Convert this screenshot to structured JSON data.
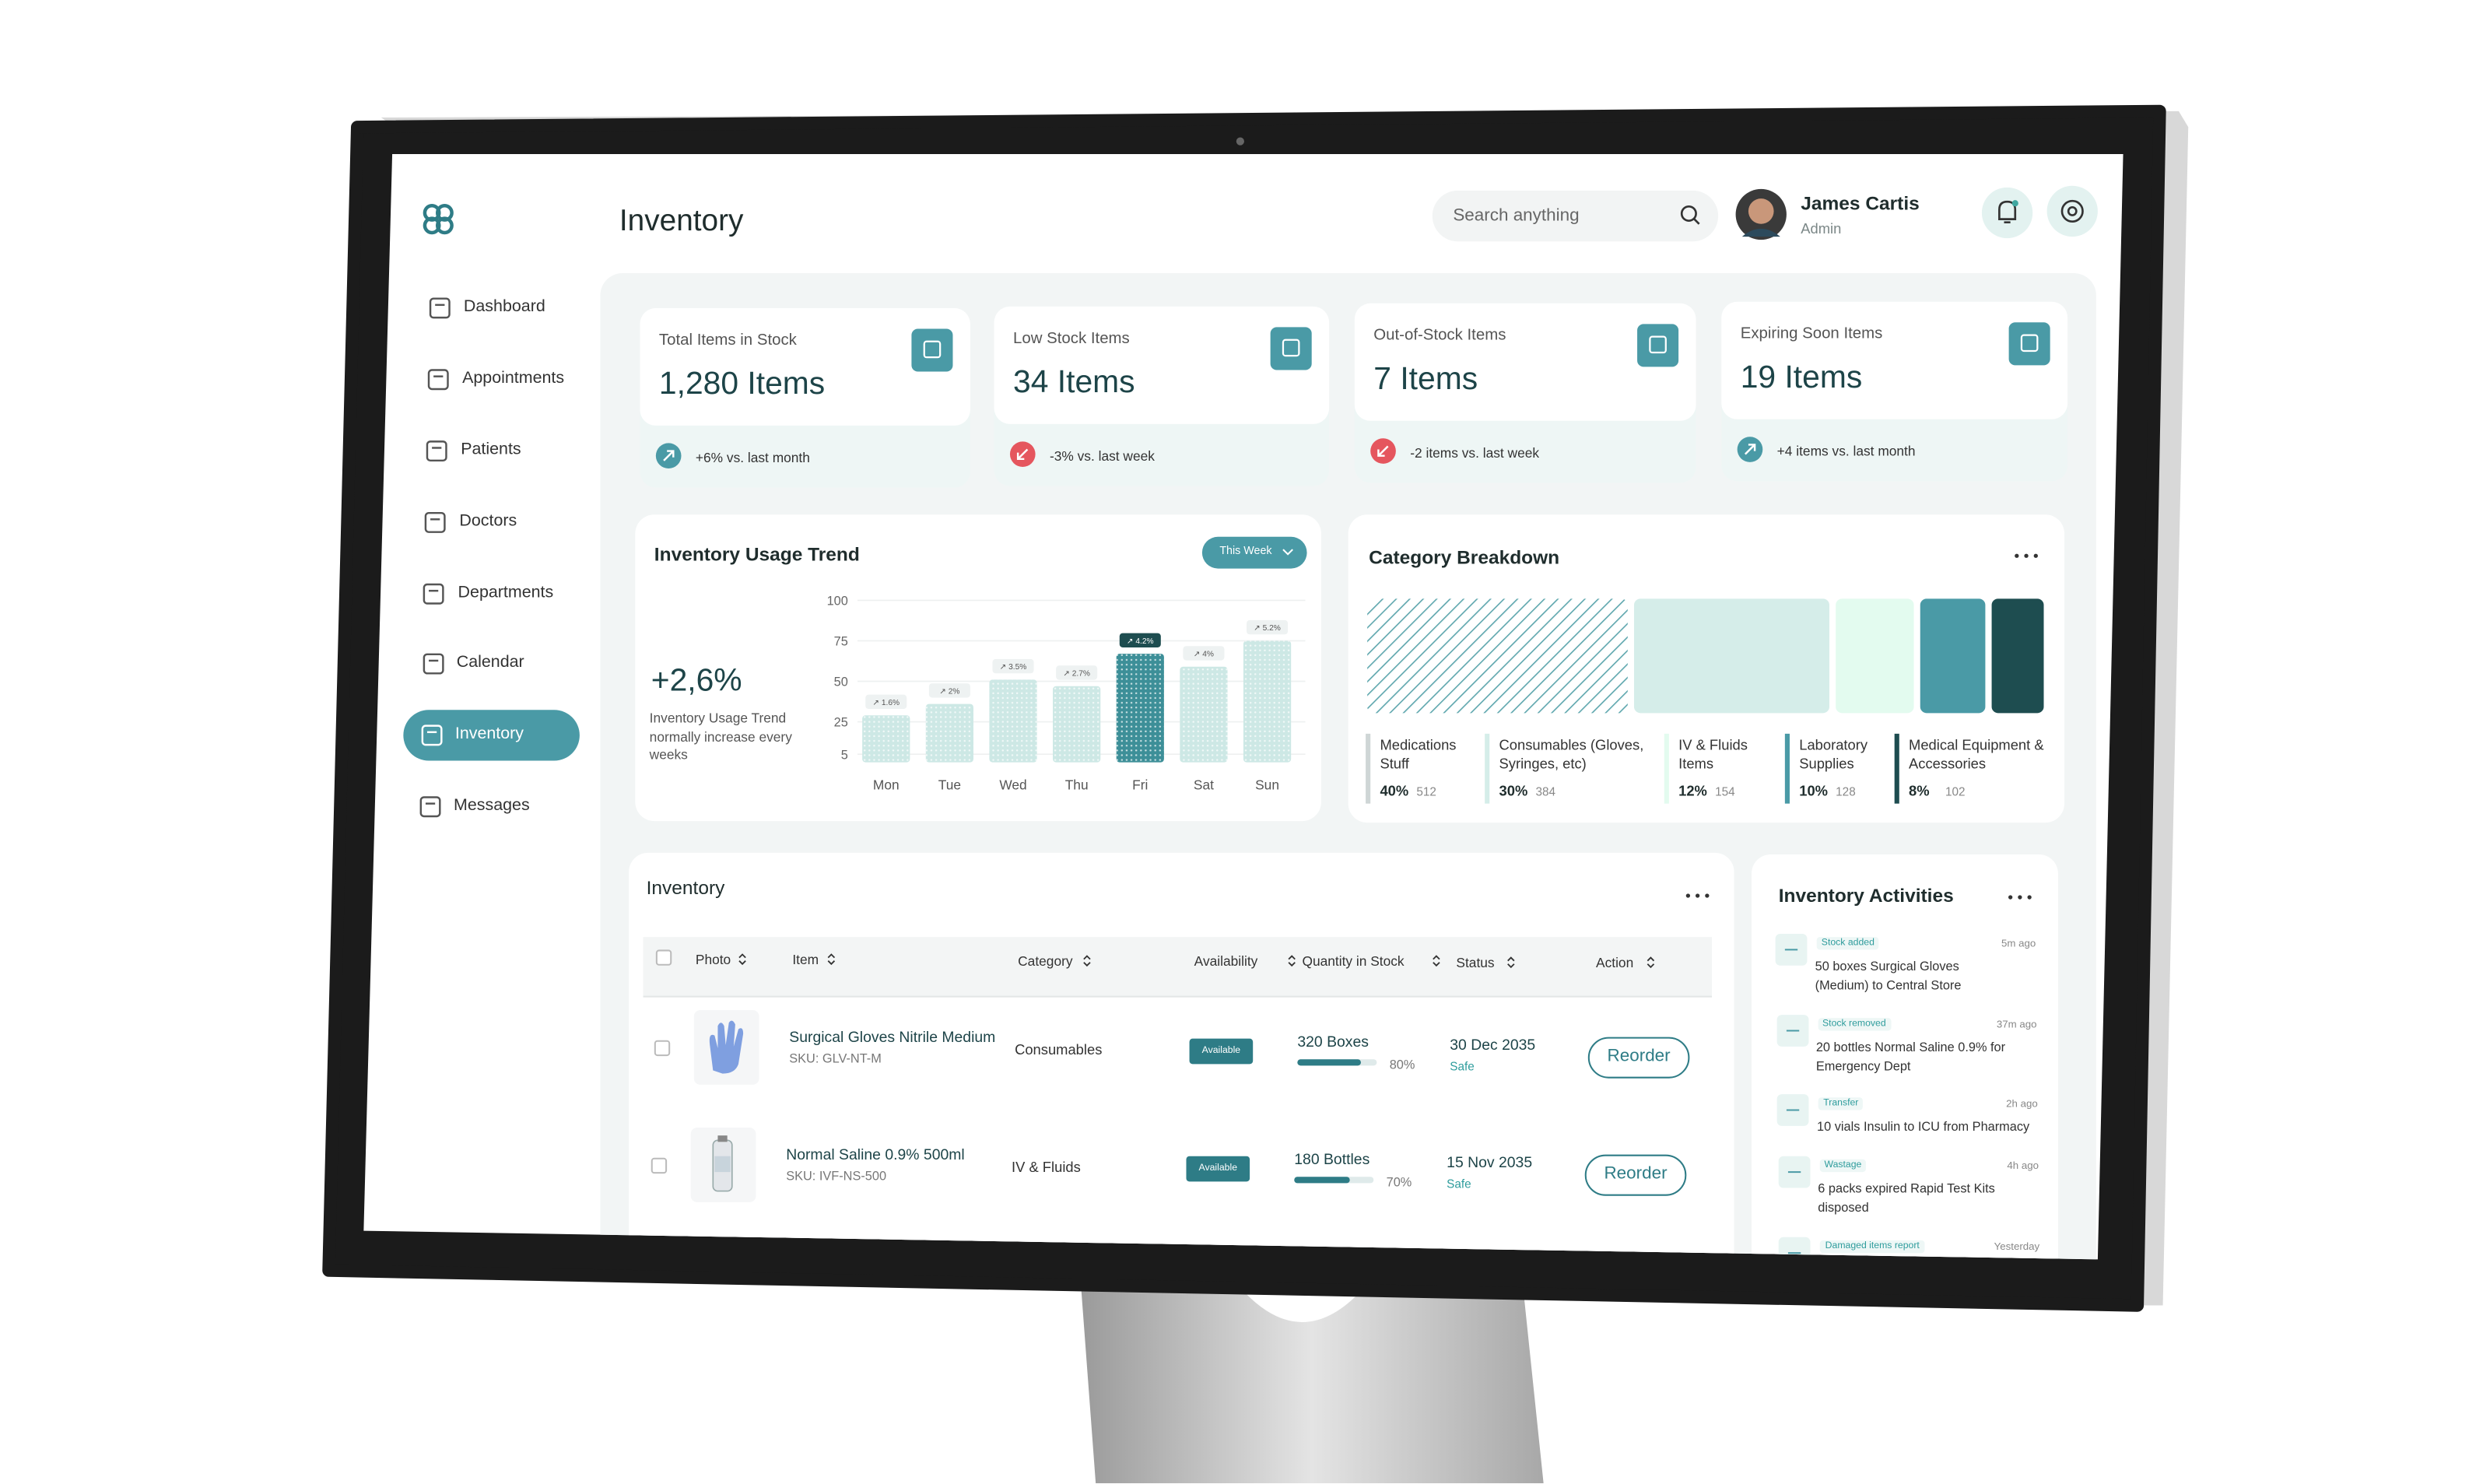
{
  "sidebar": {
    "nav": [
      "Dashboard",
      "Appointments",
      "Patients",
      "Doctors",
      "Departments",
      "Calendar",
      "Inventory",
      "Messages"
    ]
  },
  "header": {
    "title": "Inventory",
    "search_placeholder": "Search anything",
    "user_name": "James Cartis",
    "user_role": "Admin"
  },
  "stats": [
    {
      "label": "Total Items in Stock",
      "value": "1,280 Items",
      "change": "+6% vs. last month",
      "trend": "up"
    },
    {
      "label": "Low Stock Items",
      "value": "34 Items",
      "change": "-3% vs. last week",
      "trend": "down"
    },
    {
      "label": "Out-of-Stock Items",
      "value": "7 Items",
      "change": "-2 items vs. last week",
      "trend": "down"
    },
    {
      "label": "Expiring Soon Items",
      "value": "19 Items",
      "change": "+4 items vs. last month",
      "trend": "up"
    }
  ],
  "chart_data": [
    {
      "type": "bar",
      "title": "Inventory Usage Trend",
      "filter": "This Week",
      "headline": "+2,6%",
      "caption": "Inventory Usage Trend normally increase every weeks",
      "categories": [
        "Mon",
        "Tue",
        "Wed",
        "Thu",
        "Fri",
        "Sat",
        "Sun"
      ],
      "values": [
        29,
        36,
        51,
        47,
        67,
        59,
        75
      ],
      "changes": [
        "↗ 1.6%",
        "↗ 2%",
        "↗ 3.5%",
        "↗ 2.7%",
        "↗ 4.2%",
        "↗ 4%",
        "↗ 5.2%"
      ],
      "colors": [
        "#cde8e5",
        "#cde8e5",
        "#cde8e5",
        "#cde8e5",
        "#3d8f98",
        "#cde8e5",
        "#cde8e5"
      ],
      "ylim": [
        0,
        100
      ],
      "yticks": [
        100,
        75,
        50,
        25,
        5
      ]
    },
    {
      "type": "proportion",
      "title": "Category Breakdown",
      "categories": [
        "Medications Stuff",
        "Consumables (Gloves, Syringes, etc)",
        "IV & Fluids Items",
        "Laboratory Supplies",
        "Medical Equipment & Accessories"
      ],
      "values": [
        40,
        30,
        12,
        10,
        8
      ],
      "value_labels": [
        "40%",
        "30%",
        "12%",
        "10%",
        "8%"
      ],
      "counts": [
        512,
        384,
        154,
        128,
        102
      ],
      "colors": [
        "#5fa7ae",
        "#d5ede9",
        "#e3fbef",
        "#4a9aa6",
        "#1e4d50"
      ],
      "hatch": [
        true,
        false,
        false,
        false,
        false
      ]
    }
  ],
  "inventory_table": {
    "title": "Inventory",
    "columns": [
      "Photo",
      "Item",
      "Category",
      "Availability",
      "Quantity in Stock",
      "Status",
      "Action"
    ],
    "rows": [
      {
        "item": "Surgical Gloves Nitrile Medium",
        "sku": "SKU: GLV-NT-M",
        "category": "Consumables",
        "availability": "Available",
        "quantity": "320 Boxes",
        "stock_level": 80,
        "stock_level_label": "80%",
        "date": "30 Dec 2035",
        "status": "Safe",
        "action": "Reorder"
      },
      {
        "item": "Normal Saline 0.9% 500ml",
        "sku": "SKU: IVF-NS-500",
        "category": "IV & Fluids",
        "availability": "Available",
        "quantity": "180 Bottles",
        "stock_level": 70,
        "stock_level_label": "70%",
        "date": "15 Nov 2035",
        "status": "Safe",
        "action": "Reorder"
      }
    ]
  },
  "activities": {
    "title": "Inventory Activities",
    "items": [
      {
        "type": "Stock added",
        "text": "50 boxes Surgical Gloves (Medium) to Central Store",
        "time": "5m ago"
      },
      {
        "type": "Stock removed",
        "text": "20 bottles Normal Saline 0.9% for Emergency Dept",
        "time": "37m ago"
      },
      {
        "type": "Transfer",
        "text": "10 vials Insulin to ICU from Pharmacy",
        "time": "2h ago"
      },
      {
        "type": "Wastage",
        "text": "6 packs expired Rapid Test Kits disposed",
        "time": "4h ago"
      },
      {
        "type": "Damaged items report",
        "time": "Yesterday"
      }
    ]
  }
}
